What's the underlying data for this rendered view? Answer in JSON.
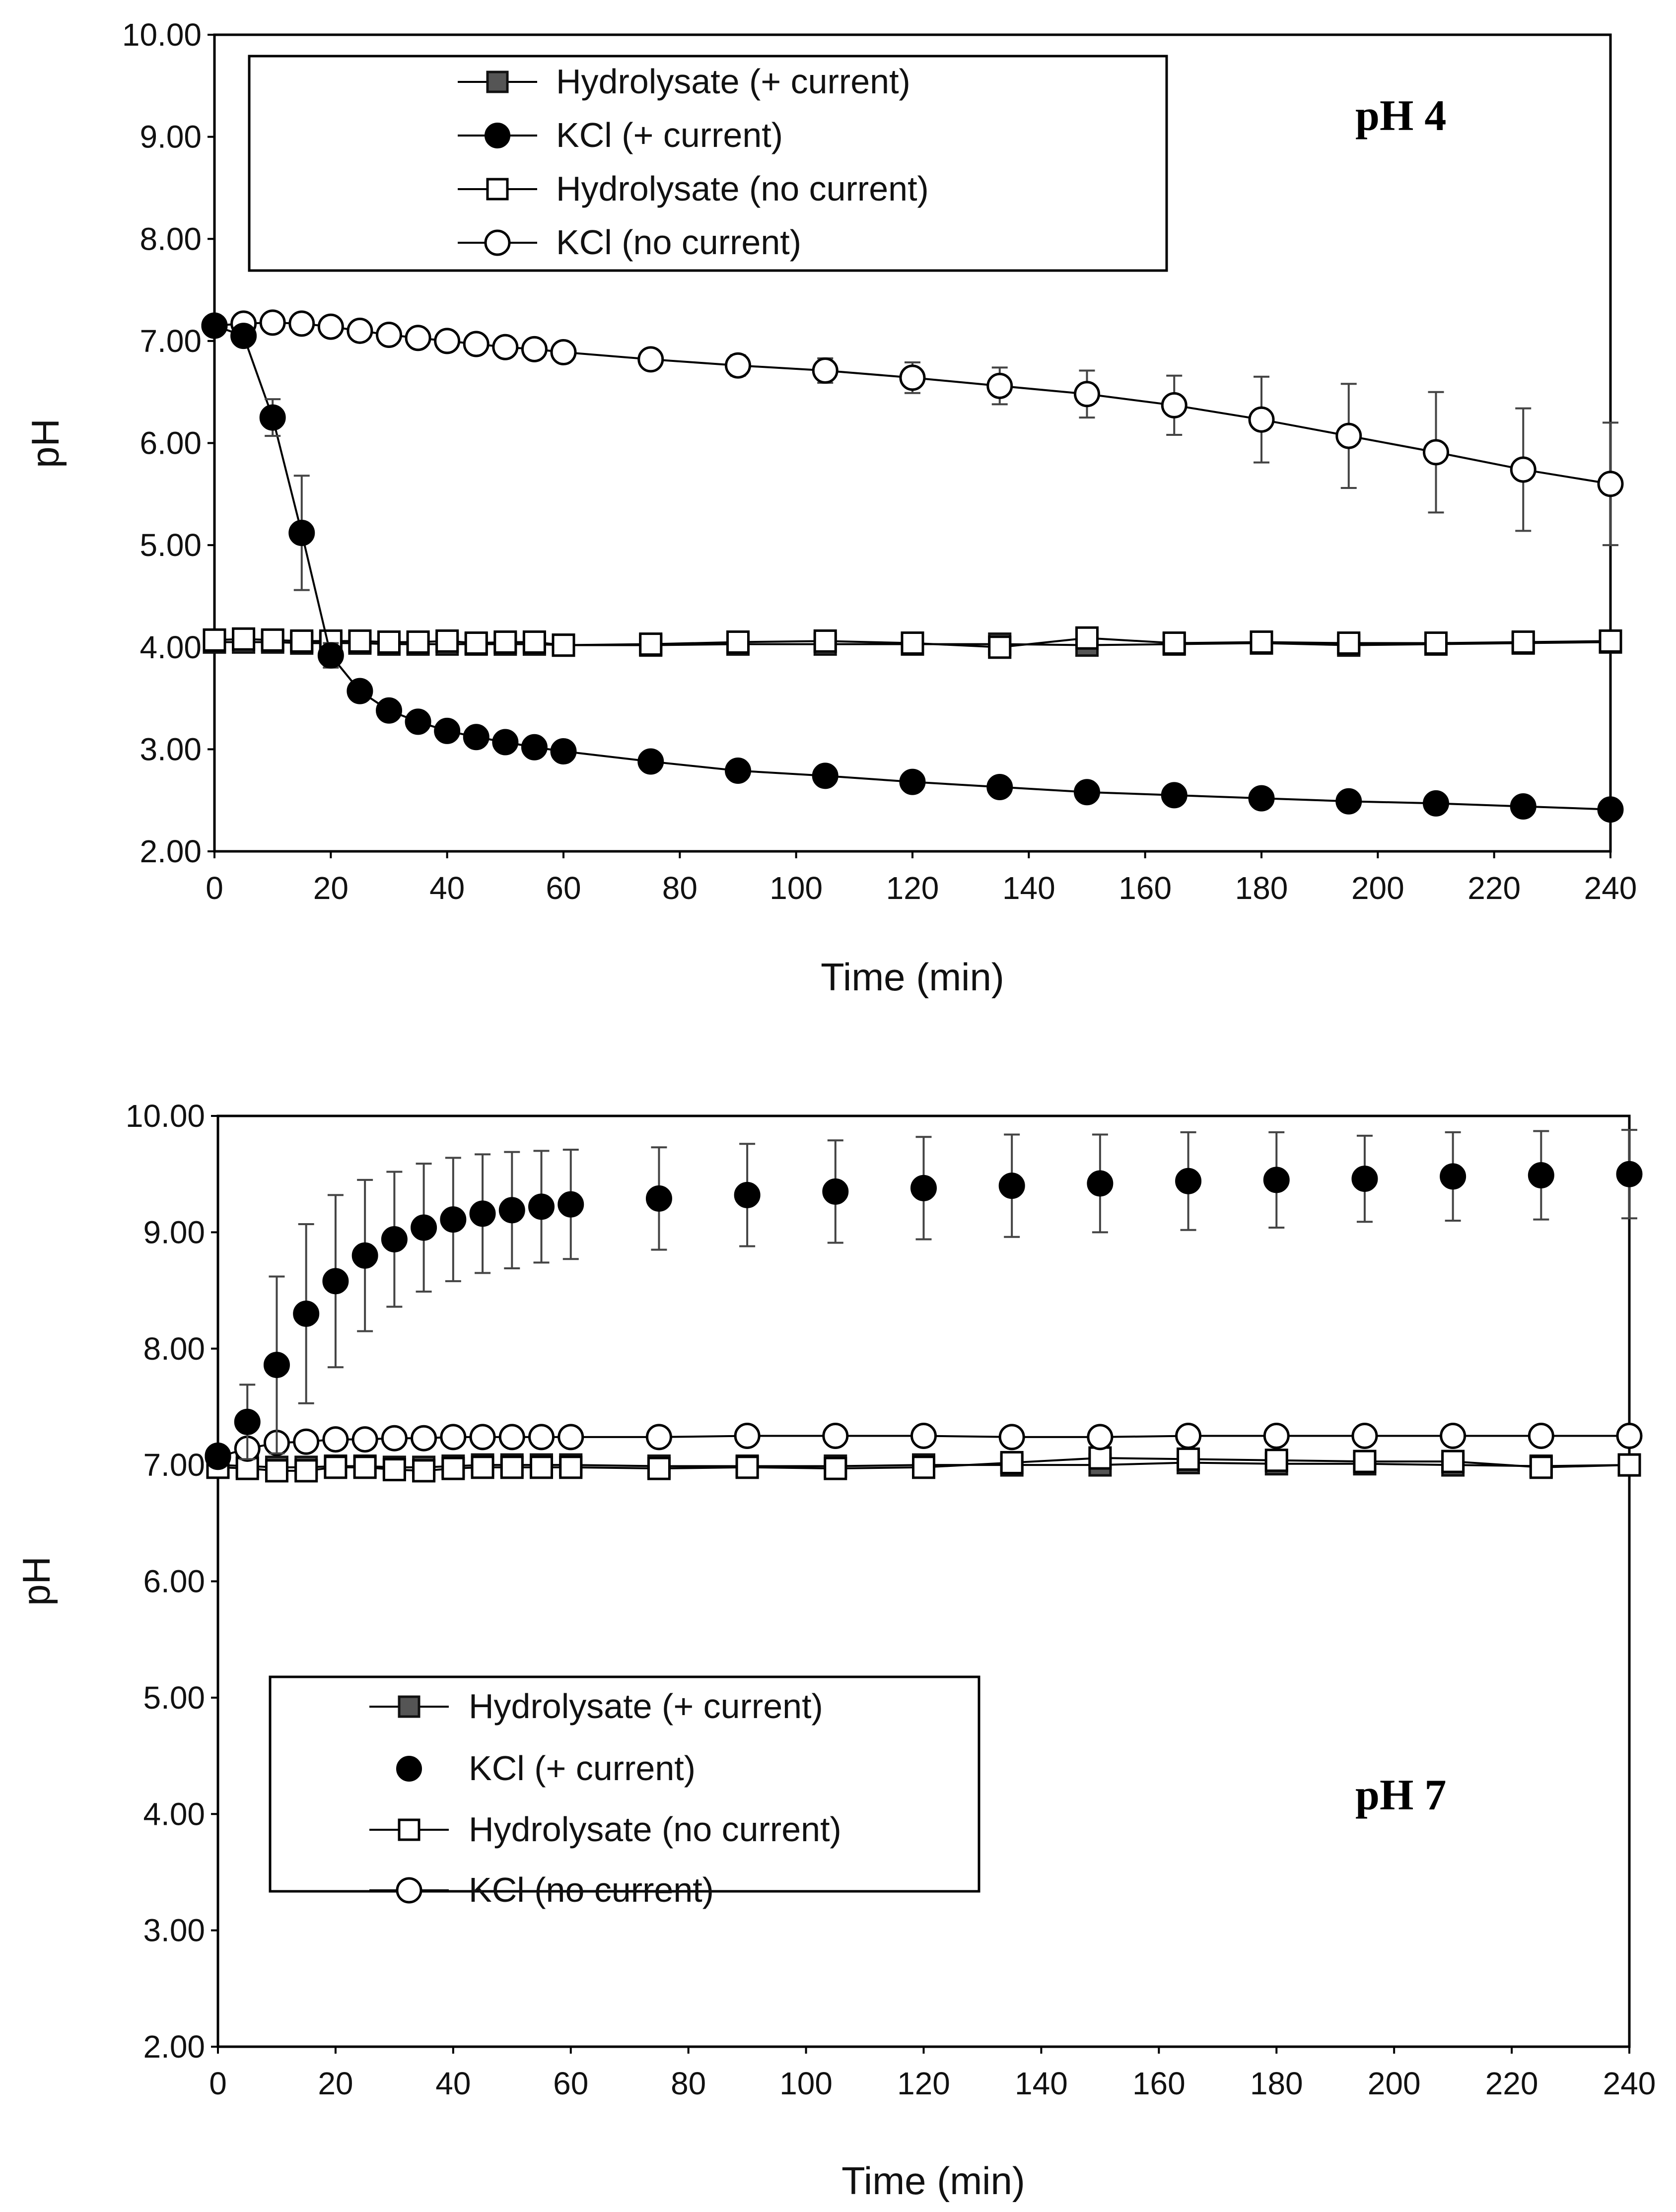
{
  "chart_data": [
    {
      "type": "line",
      "annotation": "pH 4",
      "xlabel": "Time (min)",
      "ylabel": "pH",
      "xlim": [
        0,
        240
      ],
      "ylim": [
        2,
        10
      ],
      "xticks": [
        "0",
        "20",
        "40",
        "60",
        "80",
        "100",
        "120",
        "140",
        "160",
        "180",
        "200",
        "220",
        "240"
      ],
      "yticks": [
        "2.00",
        "3.00",
        "4.00",
        "5.00",
        "6.00",
        "7.00",
        "8.00",
        "9.00",
        "10.00"
      ],
      "grid": false,
      "legend_position": "top-left",
      "x": [
        0,
        5,
        10,
        15,
        20,
        25,
        30,
        35,
        40,
        45,
        50,
        55,
        60,
        75,
        90,
        105,
        120,
        135,
        150,
        165,
        180,
        195,
        210,
        225,
        240
      ],
      "series": [
        {
          "name": "Hydrolysate (+ current)",
          "marker": "square-filled-grey",
          "line": true,
          "values": [
            4.05,
            4.05,
            4.05,
            4.04,
            4.04,
            4.04,
            4.03,
            4.03,
            4.03,
            4.03,
            4.03,
            4.03,
            4.02,
            4.02,
            4.03,
            4.03,
            4.03,
            4.03,
            4.02,
            4.03,
            4.04,
            4.02,
            4.03,
            4.04,
            4.05
          ]
        },
        {
          "name": "KCl (+ current)",
          "marker": "circle-filled",
          "line": true,
          "values": [
            7.15,
            7.05,
            6.25,
            5.12,
            3.92,
            3.57,
            3.38,
            3.27,
            3.18,
            3.12,
            3.07,
            3.02,
            2.98,
            2.88,
            2.79,
            2.74,
            2.68,
            2.63,
            2.58,
            2.55,
            2.52,
            2.49,
            2.47,
            2.44,
            2.41
          ],
          "error": [
            0,
            0,
            0.18,
            0.56,
            0.12,
            0.05,
            0.04,
            0.03,
            0.03,
            0.03,
            0.03,
            0.03,
            0.03,
            0.03,
            0.03,
            0.03,
            0.03,
            0.03,
            0.03,
            0.03,
            0.03,
            0.03,
            0.03,
            0.03,
            0.03
          ]
        },
        {
          "name": "Hydrolysate (no current)",
          "marker": "square-open",
          "line": true,
          "values": [
            4.07,
            4.08,
            4.07,
            4.06,
            4.06,
            4.06,
            4.05,
            4.05,
            4.06,
            4.04,
            4.05,
            4.05,
            4.02,
            4.03,
            4.05,
            4.06,
            4.04,
            4.0,
            4.09,
            4.04,
            4.05,
            4.04,
            4.04,
            4.05,
            4.06
          ]
        },
        {
          "name": "KCl (no current)",
          "marker": "circle-open",
          "line": true,
          "values": [
            7.15,
            7.17,
            7.18,
            7.17,
            7.14,
            7.1,
            7.06,
            7.03,
            7.0,
            6.97,
            6.94,
            6.92,
            6.89,
            6.82,
            6.76,
            6.71,
            6.64,
            6.56,
            6.48,
            6.37,
            6.23,
            6.07,
            5.91,
            5.74,
            5.6
          ],
          "error": [
            0.02,
            0.02,
            0.02,
            0.03,
            0.03,
            0.04,
            0.04,
            0.04,
            0.04,
            0.05,
            0.05,
            0.05,
            0.06,
            0.08,
            0.1,
            0.12,
            0.15,
            0.18,
            0.23,
            0.29,
            0.42,
            0.51,
            0.59,
            0.6,
            0.6
          ]
        }
      ]
    },
    {
      "type": "line",
      "annotation": "pH 7",
      "xlabel": "Time (min)",
      "ylabel": "pH",
      "xlim": [
        0,
        240
      ],
      "ylim": [
        2,
        10
      ],
      "xticks": [
        "0",
        "20",
        "40",
        "60",
        "80",
        "100",
        "120",
        "140",
        "160",
        "180",
        "200",
        "220",
        "240"
      ],
      "yticks": [
        "2.00",
        "3.00",
        "4.00",
        "5.00",
        "6.00",
        "7.00",
        "8.00",
        "9.00",
        "10.00"
      ],
      "grid": false,
      "legend_position": "bottom-left",
      "x": [
        0,
        5,
        10,
        15,
        20,
        25,
        30,
        35,
        40,
        45,
        50,
        55,
        60,
        75,
        90,
        105,
        120,
        135,
        150,
        165,
        180,
        195,
        210,
        225,
        240
      ],
      "series": [
        {
          "name": "Hydrolysate (+ current)",
          "marker": "square-filled-grey",
          "line": true,
          "values": [
            7.0,
            6.99,
            6.98,
            6.98,
            6.99,
            6.99,
            6.98,
            6.98,
            6.99,
            7.0,
            7.0,
            7.0,
            7.0,
            6.99,
            6.99,
            6.99,
            7.0,
            7.0,
            7.0,
            7.02,
            7.01,
            7.01,
            7.0,
            6.99,
            7.0
          ]
        },
        {
          "name": "KCl (+ current)",
          "marker": "circle-filled",
          "line": false,
          "values": [
            7.08,
            7.37,
            7.86,
            8.3,
            8.58,
            8.8,
            8.94,
            9.04,
            9.11,
            9.16,
            9.19,
            9.22,
            9.24,
            9.29,
            9.32,
            9.35,
            9.38,
            9.4,
            9.42,
            9.44,
            9.45,
            9.46,
            9.48,
            9.49,
            9.5
          ],
          "error": [
            0.03,
            0.32,
            0.76,
            0.77,
            0.74,
            0.65,
            0.58,
            0.55,
            0.53,
            0.51,
            0.5,
            0.48,
            0.47,
            0.44,
            0.44,
            0.44,
            0.44,
            0.44,
            0.42,
            0.42,
            0.41,
            0.37,
            0.38,
            0.38,
            0.38
          ]
        },
        {
          "name": "Hydrolysate (no current)",
          "marker": "square-open",
          "line": true,
          "values": [
            6.98,
            6.97,
            6.95,
            6.95,
            6.98,
            6.98,
            6.96,
            6.95,
            6.97,
            6.98,
            6.98,
            6.98,
            6.98,
            6.97,
            6.98,
            6.97,
            6.98,
            7.02,
            7.06,
            7.05,
            7.04,
            7.03,
            7.03,
            6.98,
            7.0
          ]
        },
        {
          "name": "KCl (no current)",
          "marker": "circle-open",
          "line": true,
          "values": [
            7.07,
            7.14,
            7.19,
            7.2,
            7.22,
            7.22,
            7.23,
            7.23,
            7.24,
            7.24,
            7.24,
            7.24,
            7.24,
            7.24,
            7.25,
            7.25,
            7.25,
            7.24,
            7.24,
            7.25,
            7.25,
            7.25,
            7.25,
            7.25,
            7.25
          ]
        }
      ]
    }
  ]
}
